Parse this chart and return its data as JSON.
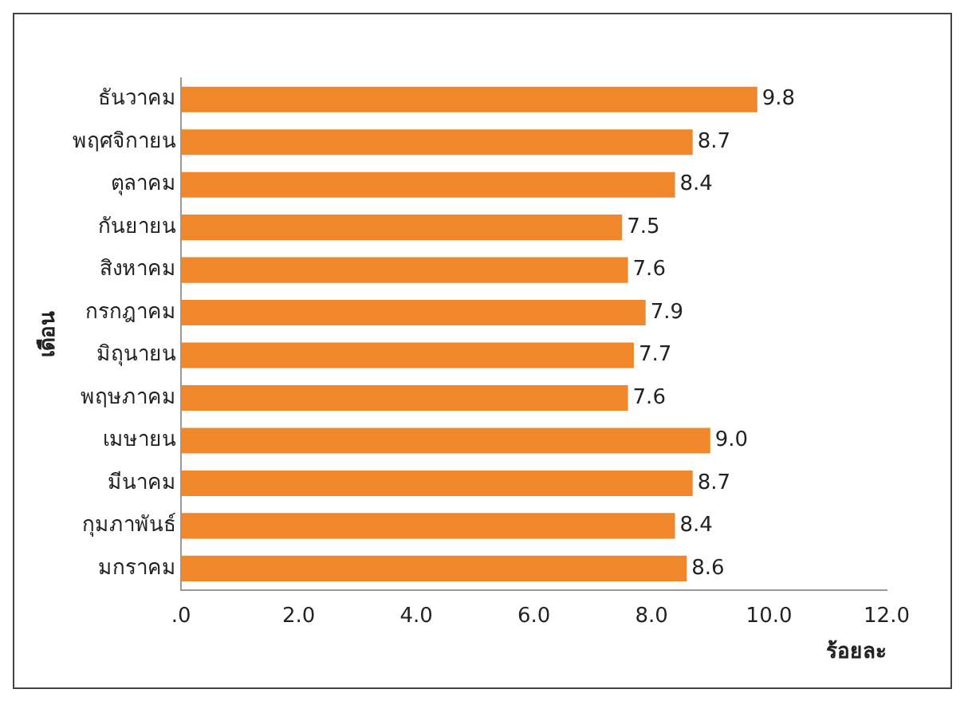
{
  "chart_data": {
    "type": "bar",
    "orientation": "horizontal",
    "categories": [
      "ธันวาคม",
      "พฤศจิกายน",
      "ตุลาคม",
      "กันยายน",
      "สิงหาคม",
      "กรกฎาคม",
      "มิถุนายน",
      "พฤษภาคม",
      "เมษายน",
      "มีนาคม",
      "กุมภาพันธ์",
      "มกราคม"
    ],
    "values": [
      9.8,
      8.7,
      8.4,
      7.5,
      7.6,
      7.9,
      7.7,
      7.6,
      9.0,
      8.7,
      8.4,
      8.6
    ],
    "value_labels": [
      "9.8",
      "8.7",
      "8.4",
      "7.5",
      "7.6",
      "7.9",
      "7.7",
      "7.6",
      "9.0",
      "8.7",
      "8.4",
      "8.6"
    ],
    "color": "#f0872a",
    "xlim": [
      0,
      12
    ],
    "xticks": [
      {
        "value": 0,
        "label": ".0"
      },
      {
        "value": 2,
        "label": "2.0"
      },
      {
        "value": 4,
        "label": "4.0"
      },
      {
        "value": 6,
        "label": "6.0"
      },
      {
        "value": 8,
        "label": "8.0"
      },
      {
        "value": 10,
        "label": "10.0"
      },
      {
        "value": 12,
        "label": "12.0"
      }
    ],
    "xlabel": "ร้อยละ",
    "ylabel": "เดือน",
    "grid": false,
    "legend": false
  }
}
